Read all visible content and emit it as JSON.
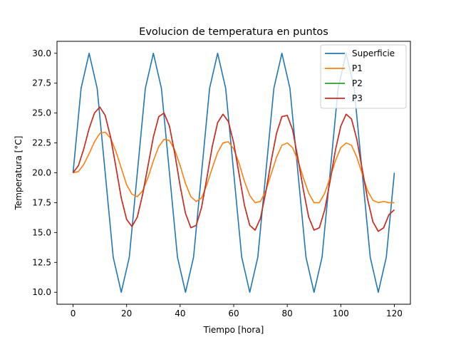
{
  "chart_data": {
    "type": "line",
    "title": "Evolucion de temperatura en puntos",
    "xlabel": "Tiempo [hora]",
    "ylabel": "Temperatura [°C]",
    "xlim": [
      -6,
      126
    ],
    "ylim": [
      9,
      31
    ],
    "xticks": [
      0,
      20,
      40,
      60,
      80,
      100,
      120
    ],
    "xtick_labels": [
      "0",
      "20",
      "40",
      "60",
      "80",
      "100",
      "120"
    ],
    "yticks": [
      10.0,
      12.5,
      15.0,
      17.5,
      20.0,
      22.5,
      25.0,
      27.5,
      30.0
    ],
    "ytick_labels": [
      "10.0",
      "12.5",
      "15.0",
      "17.5",
      "20.0",
      "22.5",
      "25.0",
      "27.5",
      "30.0"
    ],
    "grid": false,
    "legend_position": "top-right",
    "series": [
      {
        "name": "Superficie",
        "color": "#1f77b4",
        "x": [
          0,
          3,
          6,
          9,
          12,
          15,
          18,
          21,
          24,
          27,
          30,
          33,
          36,
          39,
          42,
          45,
          48,
          51,
          54,
          57,
          60,
          63,
          66,
          69,
          72,
          75,
          78,
          81,
          84,
          87,
          90,
          93,
          96,
          99,
          102,
          105,
          108,
          111,
          114,
          117,
          120
        ],
        "y": [
          20.0,
          27.07,
          30.0,
          27.07,
          20.0,
          12.93,
          10.0,
          12.93,
          20.0,
          27.07,
          30.0,
          27.07,
          20.0,
          12.93,
          10.0,
          12.93,
          20.0,
          27.07,
          30.0,
          27.07,
          20.0,
          12.93,
          10.0,
          12.93,
          20.0,
          27.07,
          30.0,
          27.07,
          20.0,
          12.93,
          10.0,
          12.93,
          20.0,
          27.07,
          30.0,
          27.07,
          20.0,
          12.93,
          10.0,
          12.93,
          20.0
        ]
      },
      {
        "name": "P1",
        "color": "#ff7f0e",
        "x": [
          0,
          2,
          4,
          6,
          8,
          10,
          12,
          14,
          16,
          18,
          20,
          22,
          24,
          26,
          28,
          30,
          32,
          34,
          36,
          38,
          40,
          42,
          44,
          46,
          48,
          50,
          52,
          54,
          56,
          58,
          60,
          62,
          64,
          66,
          68,
          70,
          72,
          74,
          76,
          78,
          80,
          82,
          84,
          86,
          88,
          90,
          92,
          94,
          96,
          98,
          100,
          102,
          104,
          106,
          108,
          110,
          112,
          114,
          116,
          118,
          120
        ],
        "y": [
          20.0,
          20.1,
          20.7,
          21.6,
          22.6,
          23.3,
          23.4,
          22.9,
          21.8,
          20.4,
          19.0,
          18.2,
          18.0,
          18.5,
          19.6,
          21.0,
          22.2,
          22.8,
          22.7,
          21.9,
          20.6,
          19.1,
          18.0,
          17.6,
          17.9,
          19.0,
          20.4,
          21.7,
          22.5,
          22.6,
          22.0,
          20.8,
          19.3,
          18.1,
          17.5,
          17.6,
          18.5,
          19.9,
          21.3,
          22.3,
          22.5,
          22.1,
          21.0,
          19.6,
          18.3,
          17.5,
          17.5,
          18.3,
          19.6,
          21.0,
          22.1,
          22.5,
          22.3,
          21.3,
          19.9,
          18.5,
          17.7,
          17.5,
          17.6,
          17.5,
          17.5
        ]
      },
      {
        "name": "P2",
        "color": "#2ca02c",
        "x": [
          0,
          2,
          4,
          6,
          8,
          10,
          12,
          14,
          16,
          18,
          20,
          22,
          24,
          26,
          28,
          30,
          32,
          34,
          36,
          38,
          40,
          42,
          44,
          46,
          48,
          50,
          52,
          54,
          56,
          58,
          60,
          62,
          64,
          66,
          68,
          70,
          72,
          74,
          76,
          78,
          80,
          82,
          84,
          86,
          88,
          90,
          92,
          94,
          96,
          98,
          100,
          102,
          104,
          106,
          108,
          110,
          112,
          114,
          116,
          118,
          120
        ],
        "y": [
          20.0,
          20.6,
          22.0,
          23.7,
          25.0,
          25.5,
          24.8,
          23.0,
          20.5,
          17.9,
          16.1,
          15.5,
          16.3,
          18.2,
          20.6,
          23.0,
          24.7,
          25.0,
          23.9,
          21.6,
          18.9,
          16.6,
          15.4,
          15.6,
          17.1,
          19.6,
          22.2,
          24.2,
          24.9,
          24.3,
          22.5,
          19.9,
          17.3,
          15.6,
          15.2,
          16.2,
          18.4,
          21.0,
          23.3,
          24.7,
          24.8,
          23.6,
          21.2,
          18.6,
          16.3,
          15.2,
          15.4,
          16.9,
          19.3,
          21.9,
          23.9,
          24.9,
          24.5,
          22.8,
          20.3,
          17.8,
          15.9,
          15.1,
          15.4,
          16.5,
          16.9
        ]
      },
      {
        "name": "P3",
        "color": "#d62728",
        "x": [
          0,
          2,
          4,
          6,
          8,
          10,
          12,
          14,
          16,
          18,
          20,
          22,
          24,
          26,
          28,
          30,
          32,
          34,
          36,
          38,
          40,
          42,
          44,
          46,
          48,
          50,
          52,
          54,
          56,
          58,
          60,
          62,
          64,
          66,
          68,
          70,
          72,
          74,
          76,
          78,
          80,
          82,
          84,
          86,
          88,
          90,
          92,
          94,
          96,
          98,
          100,
          102,
          104,
          106,
          108,
          110,
          112,
          114,
          116,
          118,
          120
        ],
        "y": [
          20.0,
          20.6,
          22.0,
          23.7,
          25.0,
          25.5,
          24.8,
          23.0,
          20.5,
          17.9,
          16.1,
          15.5,
          16.3,
          18.2,
          20.6,
          23.0,
          24.7,
          25.0,
          23.9,
          21.6,
          18.9,
          16.6,
          15.4,
          15.6,
          17.1,
          19.6,
          22.2,
          24.2,
          24.9,
          24.3,
          22.5,
          19.9,
          17.3,
          15.6,
          15.2,
          16.2,
          18.4,
          21.0,
          23.3,
          24.7,
          24.8,
          23.6,
          21.2,
          18.6,
          16.3,
          15.2,
          15.4,
          16.9,
          19.3,
          21.9,
          23.9,
          24.9,
          24.5,
          22.8,
          20.3,
          17.8,
          15.9,
          15.1,
          15.4,
          16.5,
          16.9
        ]
      }
    ]
  }
}
